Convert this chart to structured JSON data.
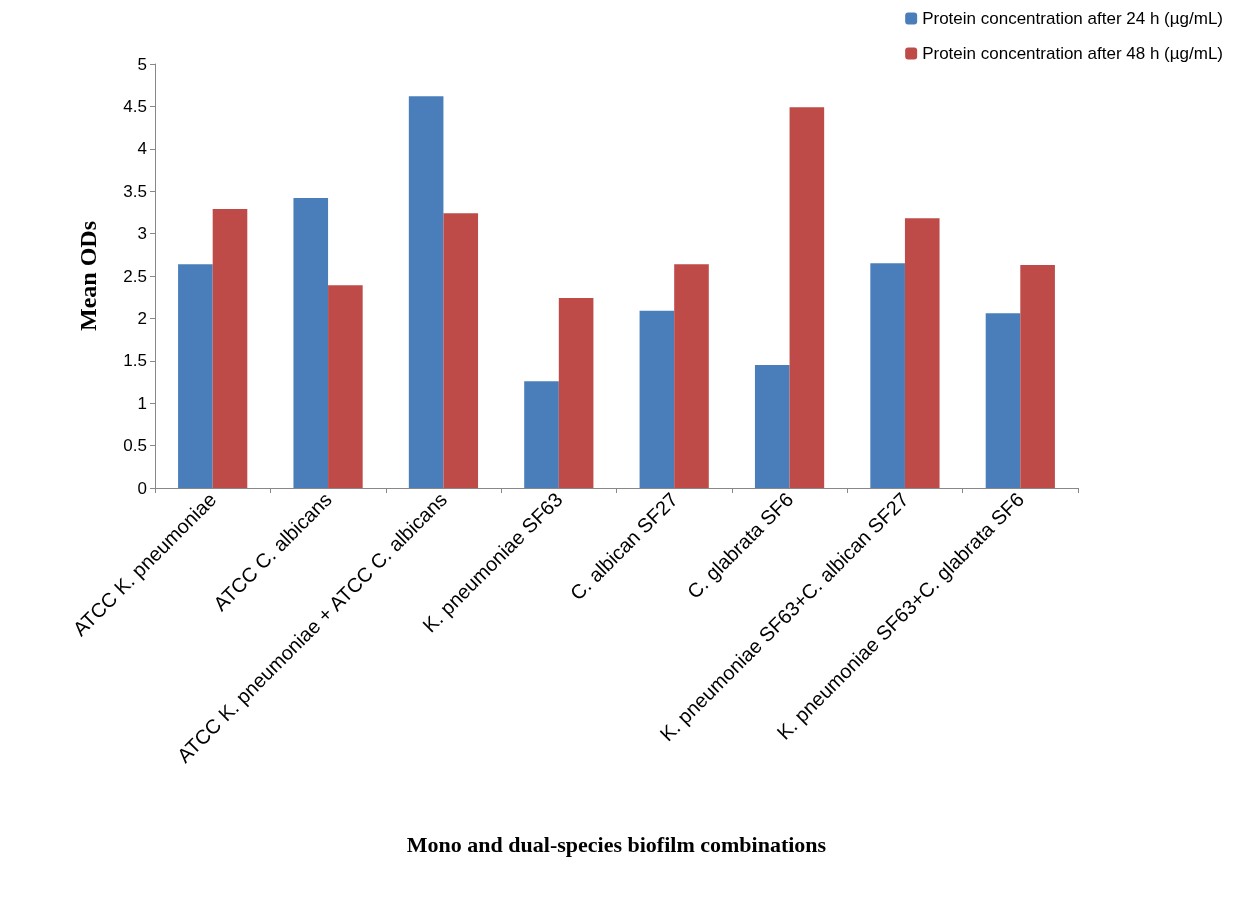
{
  "chart_data": {
    "type": "bar",
    "xlabel": "Mono and dual-species biofilm combinations",
    "ylabel": "Mean ODs",
    "categories": [
      "ATCC K. pneumoniae",
      "ATCC C. albicans",
      "ATCC K. pneumoniae + ATCC C. albicans",
      "K. pneumoniae SF63",
      "C. albican SF27",
      "C. glabrata SF6",
      "K. pneumoniae SF63+C. albican SF27",
      "K. pneumoniae SF63+C. glabrata SF6"
    ],
    "series": [
      {
        "name": "Protein concentration after 24 h (µg/mL)",
        "color": "#4a7ebb",
        "values": [
          2.64,
          3.42,
          4.62,
          1.26,
          2.09,
          1.45,
          2.65,
          2.06
        ]
      },
      {
        "name": "Protein concentration after 48 h (µg/mL)",
        "color": "#be4b48",
        "values": [
          3.29,
          2.39,
          3.24,
          2.24,
          2.64,
          4.49,
          3.18,
          2.63
        ]
      }
    ],
    "ylim": [
      0,
      5
    ],
    "yticks": [
      0,
      0.5,
      1,
      1.5,
      2,
      2.5,
      3,
      3.5,
      4,
      4.5,
      5
    ],
    "grid": false,
    "legend": "top right"
  }
}
